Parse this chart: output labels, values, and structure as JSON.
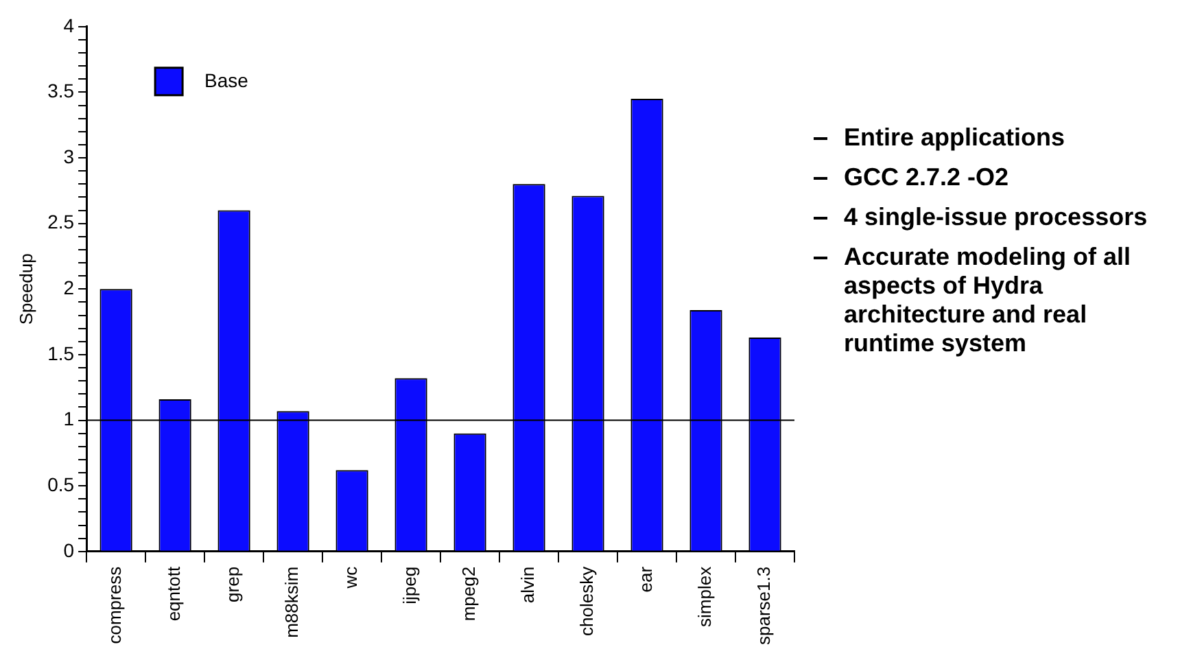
{
  "chart_data": {
    "type": "bar",
    "ylabel": "Speedup",
    "categories": [
      "compress",
      "eqntott",
      "grep",
      "m88ksim",
      "wc",
      "ijpeg",
      "mpeg2",
      "alvin",
      "cholesky",
      "ear",
      "simplex",
      "sparse1.3"
    ],
    "series": [
      {
        "name": "Base",
        "color": "#0c0cff",
        "values": [
          2.0,
          1.16,
          2.6,
          1.07,
          0.62,
          1.32,
          0.9,
          2.8,
          2.71,
          3.45,
          1.84,
          1.63
        ]
      }
    ],
    "ylim": [
      0,
      4
    ],
    "yticks": [
      0,
      {
        "value": 0.1,
        "label": null
      },
      {
        "value": 0.2,
        "label": null
      },
      {
        "value": 0.3,
        "label": null
      },
      {
        "value": 0.4,
        "label": null
      },
      0.5,
      {
        "value": 0.6,
        "label": null
      },
      {
        "value": 0.7,
        "label": null
      },
      {
        "value": 0.8,
        "label": null
      },
      {
        "value": 0.9,
        "label": null
      },
      1,
      {
        "value": 1.1,
        "label": null
      },
      {
        "value": 1.2,
        "label": null
      },
      {
        "value": 1.3,
        "label": null
      },
      {
        "value": 1.4,
        "label": null
      },
      1.5,
      {
        "value": 1.6,
        "label": null
      },
      {
        "value": 1.7,
        "label": null
      },
      {
        "value": 1.8,
        "label": null
      },
      {
        "value": 1.9,
        "label": null
      },
      2,
      {
        "value": 2.1,
        "label": null
      },
      {
        "value": 2.2,
        "label": null
      },
      {
        "value": 2.3,
        "label": null
      },
      {
        "value": 2.4,
        "label": null
      },
      2.5,
      {
        "value": 2.6,
        "label": null
      },
      {
        "value": 2.7,
        "label": null
      },
      {
        "value": 2.8,
        "label": null
      },
      {
        "value": 2.9,
        "label": null
      },
      3,
      {
        "value": 3.1,
        "label": null
      },
      {
        "value": 3.2,
        "label": null
      },
      {
        "value": 3.3,
        "label": null
      },
      {
        "value": 3.4,
        "label": null
      },
      3.5,
      {
        "value": 3.6,
        "label": null
      },
      {
        "value": 3.7,
        "label": null
      },
      {
        "value": 3.8,
        "label": null
      },
      {
        "value": 3.9,
        "label": null
      },
      4
    ],
    "ref_lines": [
      {
        "axis": "y",
        "value": 1,
        "color": "#000000"
      }
    ],
    "legend": "top left",
    "grid": false,
    "annotations": [
      "Entire applications",
      "GCC 2.7.2 -O2",
      "4 single-issue processors",
      "Accurate modeling of all aspects of Hydra architecture and real runtime system"
    ]
  }
}
